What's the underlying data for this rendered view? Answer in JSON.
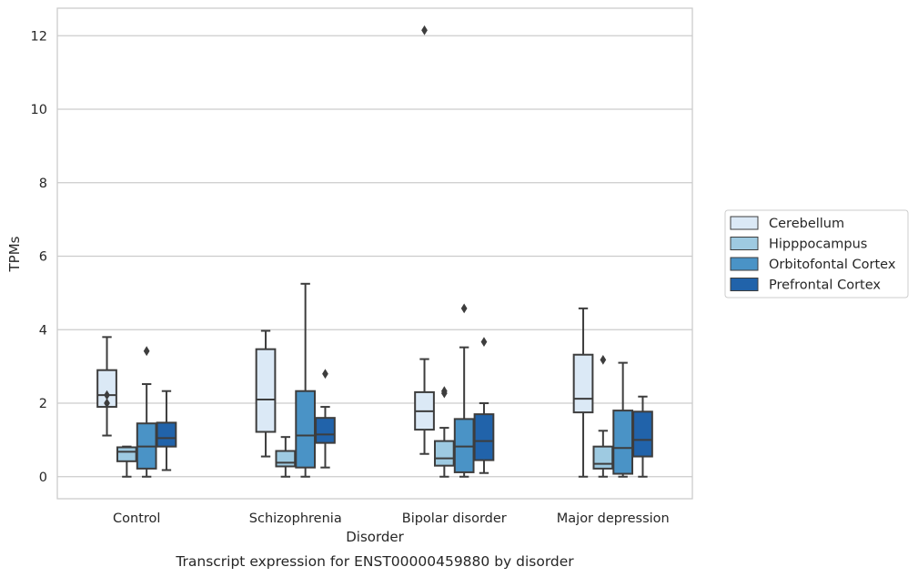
{
  "chart_data": {
    "type": "box",
    "title": "",
    "xlabel": "Disorder",
    "ylabel": "TPMs",
    "caption": "Transcript expression for ENST00000459880 by disorder",
    "ylim": [
      -0.6,
      12.75
    ],
    "yticks": [
      0,
      2,
      4,
      6,
      8,
      10,
      12
    ],
    "grid": "horizontal",
    "legend_position": "right",
    "categories": [
      "Control",
      "Schizophrenia",
      "Bipolar disorder",
      "Major depression"
    ],
    "series": [
      {
        "name": "Cerebellum",
        "color": "#dbe9f6",
        "boxes": [
          {
            "whisker_low": 1.12,
            "q1": 1.9,
            "median": 2.22,
            "q3": 2.9,
            "whisker_high": 3.8,
            "outliers": [
              2.0,
              2.22
            ]
          },
          {
            "whisker_low": 0.55,
            "q1": 1.22,
            "median": 2.1,
            "q3": 3.47,
            "whisker_high": 3.97,
            "outliers": []
          },
          {
            "whisker_low": 0.62,
            "q1": 1.28,
            "median": 1.78,
            "q3": 2.3,
            "whisker_high": 3.2,
            "outliers": [
              12.15
            ]
          },
          {
            "whisker_low": 0.0,
            "q1": 1.75,
            "median": 2.12,
            "q3": 3.32,
            "whisker_high": 4.58,
            "outliers": []
          }
        ]
      },
      {
        "name": "Hipppocampus",
        "color": "#9ecae1",
        "boxes": [
          {
            "whisker_low": 0.0,
            "q1": 0.42,
            "median": 0.68,
            "q3": 0.8,
            "whisker_high": 0.82,
            "outliers": []
          },
          {
            "whisker_low": 0.0,
            "q1": 0.28,
            "median": 0.38,
            "q3": 0.7,
            "whisker_high": 1.08,
            "outliers": []
          },
          {
            "whisker_low": 0.0,
            "q1": 0.3,
            "median": 0.5,
            "q3": 0.97,
            "whisker_high": 1.33,
            "outliers": [
              2.27,
              2.33
            ]
          },
          {
            "whisker_low": 0.0,
            "q1": 0.22,
            "median": 0.35,
            "q3": 0.82,
            "whisker_high": 1.25,
            "outliers": [
              3.18
            ]
          }
        ]
      },
      {
        "name": "Orbitofontal Cortex",
        "color": "#4a93c6",
        "boxes": [
          {
            "whisker_low": 0.0,
            "q1": 0.22,
            "median": 0.82,
            "q3": 1.45,
            "whisker_high": 2.52,
            "outliers": [
              3.42
            ]
          },
          {
            "whisker_low": 0.0,
            "q1": 0.25,
            "median": 1.12,
            "q3": 2.33,
            "whisker_high": 5.25,
            "outliers": []
          },
          {
            "whisker_low": 0.0,
            "q1": 0.12,
            "median": 0.82,
            "q3": 1.57,
            "whisker_high": 3.52,
            "outliers": [
              4.58
            ]
          },
          {
            "whisker_low": 0.0,
            "q1": 0.08,
            "median": 0.78,
            "q3": 1.8,
            "whisker_high": 3.1,
            "outliers": []
          }
        ]
      },
      {
        "name": "Prefrontal Cortex",
        "color": "#2163aa",
        "boxes": [
          {
            "whisker_low": 0.18,
            "q1": 0.82,
            "median": 1.05,
            "q3": 1.47,
            "whisker_high": 2.33,
            "outliers": []
          },
          {
            "whisker_low": 0.25,
            "q1": 0.92,
            "median": 1.15,
            "q3": 1.6,
            "whisker_high": 1.9,
            "outliers": [
              2.8
            ]
          },
          {
            "whisker_low": 0.1,
            "q1": 0.45,
            "median": 0.97,
            "q3": 1.7,
            "whisker_high": 2.0,
            "outliers": [
              3.67
            ]
          },
          {
            "whisker_low": 0.0,
            "q1": 0.55,
            "median": 1.0,
            "q3": 1.77,
            "whisker_high": 2.18,
            "outliers": []
          }
        ]
      }
    ]
  }
}
